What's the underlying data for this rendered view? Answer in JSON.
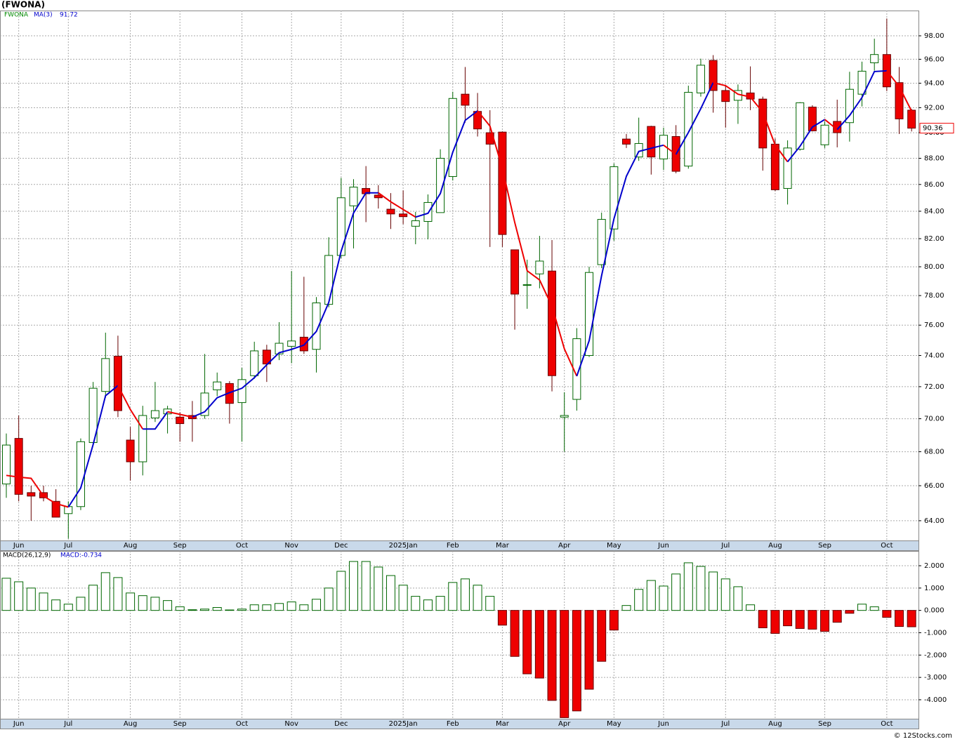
{
  "chart_data": [
    {
      "type": "candlestick",
      "title": "(FWONA)",
      "label": "FWONA",
      "categories": [
        null,
        "Jun",
        null,
        null,
        null,
        "Jul",
        null,
        null,
        null,
        null,
        "Aug",
        null,
        null,
        null,
        "Sep",
        null,
        null,
        null,
        null,
        "Oct",
        null,
        null,
        null,
        "Nov",
        null,
        null,
        null,
        "Dec",
        null,
        null,
        null,
        null,
        "2025Jan",
        null,
        null,
        null,
        "Feb",
        null,
        null,
        null,
        "Mar",
        null,
        null,
        null,
        null,
        "Apr",
        null,
        null,
        null,
        "May",
        null,
        null,
        null,
        "Jun",
        null,
        null,
        null,
        null,
        "Jul",
        null,
        null,
        null,
        "Aug",
        null,
        null,
        null,
        "Sep",
        null,
        null,
        null,
        null,
        "Oct",
        null,
        null
      ],
      "open": [
        66.1,
        68.8,
        65.6,
        65.6,
        65.1,
        64.4,
        64.8,
        68.55,
        71.7,
        73.95,
        68.7,
        67.4,
        70.05,
        70.3,
        70.1,
        70.2,
        70.2,
        71.8,
        72.2,
        71.0,
        72.7,
        74.35,
        74.1,
        74.6,
        75.2,
        74.4,
        77.4,
        80.8,
        84.4,
        85.7,
        85.2,
        84.15,
        83.8,
        82.9,
        83.25,
        83.9,
        86.6,
        93.1,
        91.7,
        90.0,
        90.05,
        81.2,
        78.7,
        79.5,
        79.7,
        70.1,
        71.2,
        74.0,
        80.15,
        82.7,
        89.5,
        88.1,
        90.5,
        87.95,
        89.7,
        87.4,
        93.2,
        95.9,
        93.4,
        92.6,
        93.2,
        92.7,
        89.1,
        85.7,
        88.7,
        92.05,
        89.05,
        90.9,
        90.8,
        93.1,
        95.7,
        96.4,
        94.05,
        91.8
      ],
      "high": [
        69.1,
        70.2,
        66.0,
        66.0,
        65.8,
        65.1,
        68.8,
        72.3,
        75.5,
        75.3,
        69.5,
        70.8,
        72.3,
        70.8,
        70.4,
        71.1,
        74.1,
        72.9,
        72.35,
        73.2,
        74.9,
        74.7,
        76.2,
        79.7,
        79.3,
        77.9,
        82.1,
        86.5,
        86.4,
        87.4,
        85.95,
        85.35,
        85.55,
        83.95,
        85.25,
        88.7,
        93.3,
        95.35,
        93.2,
        91.8,
        90.1,
        81.2,
        80.5,
        82.2,
        81.9,
        71.65,
        75.8,
        80.0,
        83.9,
        87.6,
        89.9,
        91.2,
        90.55,
        90.4,
        90.6,
        93.8,
        96.05,
        96.35,
        93.8,
        93.9,
        95.4,
        92.9,
        89.55,
        89.4,
        92.45,
        92.2,
        90.9,
        92.65,
        94.95,
        95.8,
        97.75,
        99.5,
        95.35,
        91.9
      ],
      "low": [
        65.3,
        65.1,
        64.0,
        65.1,
        64.2,
        63.0,
        64.6,
        68.4,
        71.3,
        70.1,
        66.3,
        66.6,
        69.8,
        69.1,
        68.6,
        68.6,
        70.0,
        71.4,
        69.7,
        68.6,
        72.5,
        72.3,
        73.7,
        73.5,
        74.1,
        72.9,
        77.2,
        80.6,
        81.3,
        83.2,
        84.2,
        82.7,
        83.05,
        81.6,
        81.95,
        83.9,
        86.3,
        90.8,
        89.7,
        81.4,
        81.4,
        75.7,
        77.1,
        78.5,
        71.7,
        68.0,
        70.5,
        73.9,
        79.9,
        81.85,
        88.8,
        87.8,
        86.75,
        87.1,
        86.85,
        87.2,
        92.9,
        91.6,
        90.4,
        90.7,
        91.8,
        87.05,
        85.5,
        84.5,
        88.6,
        90.1,
        88.8,
        88.85,
        89.3,
        92.1,
        95.05,
        93.35,
        89.9,
        90.1
      ],
      "close": [
        68.4,
        65.5,
        65.4,
        65.3,
        64.2,
        64.8,
        68.6,
        71.9,
        73.8,
        70.5,
        67.4,
        70.2,
        70.5,
        70.6,
        69.7,
        70.0,
        71.6,
        72.3,
        70.95,
        72.45,
        74.3,
        73.45,
        74.8,
        74.95,
        74.3,
        77.5,
        80.8,
        85.0,
        85.8,
        85.3,
        85.0,
        83.8,
        83.6,
        83.3,
        84.65,
        88.0,
        92.75,
        92.2,
        90.3,
        89.1,
        82.3,
        78.1,
        78.75,
        80.4,
        72.7,
        70.2,
        75.1,
        79.6,
        83.4,
        87.35,
        89.1,
        89.15,
        88.1,
        89.8,
        87.0,
        93.25,
        95.5,
        93.4,
        92.5,
        93.4,
        92.7,
        88.8,
        85.6,
        88.8,
        92.4,
        90.15,
        90.6,
        90.0,
        93.5,
        95.0,
        96.4,
        93.7,
        91.1,
        90.36
      ],
      "up_color": "#006600",
      "down_color": "#ee0000",
      "label_color": "#008800",
      "last_price_label": "90.36",
      "overlay": {
        "name": "MA(3)",
        "value_label": "91.72",
        "up_color": "#0000cc",
        "down_color": "#ee0000",
        "values": [
          66.6,
          66.5,
          66.43,
          65.4,
          64.97,
          64.77,
          65.87,
          68.43,
          71.43,
          72.07,
          70.57,
          69.37,
          69.37,
          70.43,
          70.27,
          70.1,
          70.43,
          71.3,
          71.62,
          71.9,
          72.57,
          73.4,
          74.18,
          74.4,
          74.68,
          75.58,
          77.53,
          81.1,
          83.87,
          85.37,
          85.37,
          84.7,
          84.13,
          83.57,
          83.85,
          85.32,
          88.47,
          90.98,
          91.75,
          90.53,
          87.23,
          83.17,
          79.72,
          79.08,
          77.28,
          74.43,
          72.67,
          74.97,
          79.37,
          83.45,
          86.62,
          88.53,
          88.78,
          89.02,
          88.3,
          90.02,
          91.92,
          94.05,
          93.8,
          93.1,
          92.87,
          91.63,
          89.03,
          87.73,
          88.93,
          90.45,
          91.05,
          90.25,
          91.37,
          92.83,
          94.97,
          95.03,
          93.73,
          91.72
        ]
      },
      "log_scale": true,
      "grid": true,
      "ylim": [
        62.9,
        100.2
      ],
      "yticks": [
        {
          "value": 64,
          "label": "64.00"
        },
        {
          "value": 66,
          "label": "66.00"
        },
        {
          "value": 68,
          "label": "68.00"
        },
        {
          "value": 70,
          "label": "70.00"
        },
        {
          "value": 72,
          "label": "72.00"
        },
        {
          "value": 74,
          "label": "74.00"
        },
        {
          "value": 76,
          "label": "76.00"
        },
        {
          "value": 78,
          "label": "78.00"
        },
        {
          "value": 80,
          "label": "80.00"
        },
        {
          "value": 82,
          "label": "82.00"
        },
        {
          "value": 84,
          "label": "84.00"
        },
        {
          "value": 86,
          "label": "86.00"
        },
        {
          "value": 88,
          "label": "88.00"
        },
        {
          "value": 90,
          "label": "90.00"
        },
        {
          "value": 92,
          "label": "92.00"
        },
        {
          "value": 94,
          "label": "94.00"
        },
        {
          "value": 96,
          "label": "96.00"
        },
        {
          "value": 98,
          "label": "98.00"
        }
      ]
    },
    {
      "type": "bar",
      "label": "MACD(26,12,9)",
      "value_label": "MACD:-0.734",
      "categories": [
        null,
        "Jun",
        null,
        null,
        null,
        "Jul",
        null,
        null,
        null,
        null,
        "Aug",
        null,
        null,
        null,
        "Sep",
        null,
        null,
        null,
        null,
        "Oct",
        null,
        null,
        null,
        "Nov",
        null,
        null,
        null,
        "Dec",
        null,
        null,
        null,
        null,
        "2025Jan",
        null,
        null,
        null,
        "Feb",
        null,
        null,
        null,
        "Mar",
        null,
        null,
        null,
        null,
        "Apr",
        null,
        null,
        null,
        "May",
        null,
        null,
        null,
        "Jun",
        null,
        null,
        null,
        null,
        "Jul",
        null,
        null,
        null,
        "Aug",
        null,
        null,
        null,
        "Sep",
        null,
        null,
        null,
        null,
        "Oct",
        null,
        null
      ],
      "values": [
        1.44,
        1.28,
        1.0,
        0.78,
        0.47,
        0.28,
        0.59,
        1.13,
        1.69,
        1.47,
        0.78,
        0.66,
        0.59,
        0.44,
        0.16,
        0.03,
        0.06,
        0.13,
        0.02,
        0.06,
        0.25,
        0.25,
        0.31,
        0.38,
        0.25,
        0.5,
        1.0,
        1.75,
        2.19,
        2.19,
        1.94,
        1.56,
        1.13,
        0.63,
        0.47,
        0.63,
        1.25,
        1.41,
        1.13,
        0.63,
        -0.66,
        -2.06,
        -2.84,
        -3.03,
        -4.03,
        -4.8,
        -4.5,
        -3.53,
        -2.28,
        -0.88,
        0.22,
        0.94,
        1.34,
        1.09,
        1.63,
        2.13,
        1.97,
        1.72,
        1.41,
        1.06,
        0.25,
        -0.78,
        -1.03,
        -0.69,
        -0.81,
        -0.84,
        -0.94,
        -0.53,
        -0.13,
        0.28,
        0.16,
        -0.31,
        -0.72,
        -0.734
      ],
      "up_color": "#006600",
      "down_color": "#ee0000",
      "label_color": "#0000cc",
      "grid": true,
      "ylim": [
        -4.85,
        2.66
      ],
      "yticks": [
        {
          "value": 2,
          "label": "2.000"
        },
        {
          "value": 1,
          "label": "1.000"
        },
        {
          "value": 0,
          "label": "0.000"
        },
        {
          "value": -1,
          "label": "-1.000"
        },
        {
          "value": -2,
          "label": "-2.000"
        },
        {
          "value": -3,
          "label": "-3.000"
        },
        {
          "value": -4,
          "label": "-4.000"
        }
      ]
    }
  ],
  "footer": "© 12Stocks.com"
}
